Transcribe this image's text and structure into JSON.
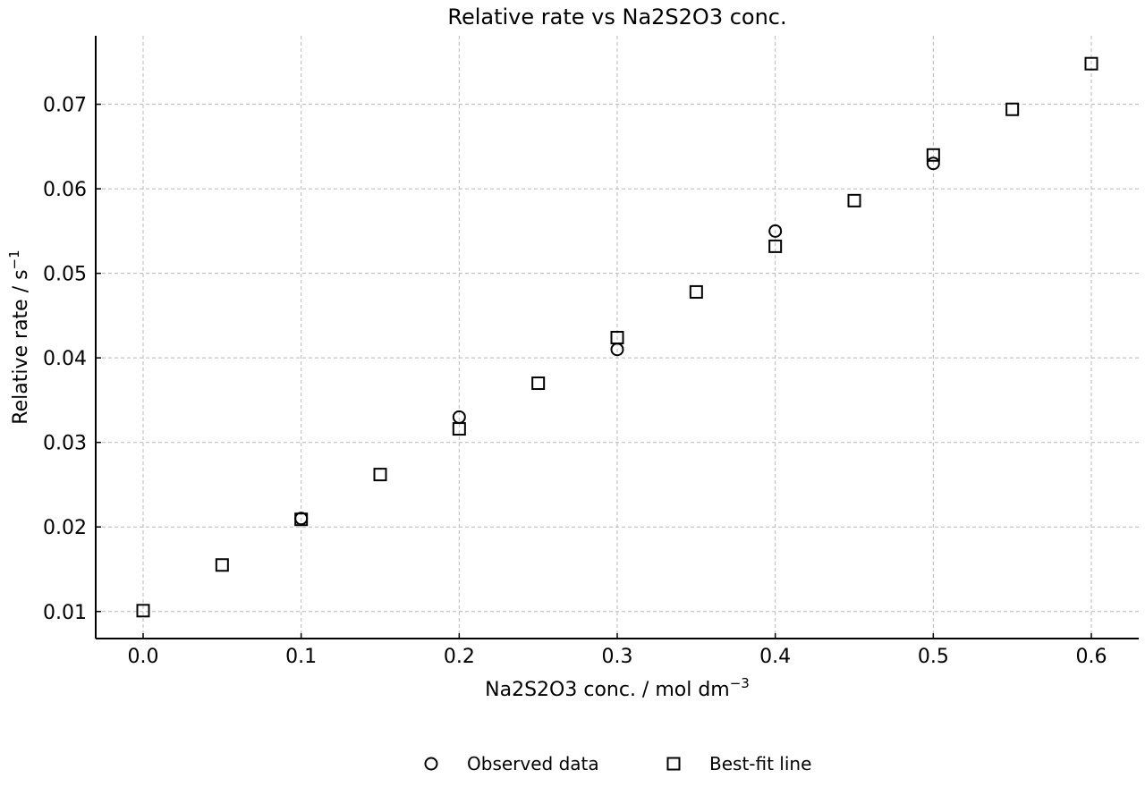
{
  "chart_data": {
    "type": "scatter",
    "title": "Relative rate vs Na2S2O3 conc.",
    "xlabel": "Na2S2O3 conc. / mol dm",
    "xlabel_sup": "−3",
    "ylabel": "Relative rate / s",
    "ylabel_sup": "−1",
    "xlim": [
      -0.03,
      0.63
    ],
    "ylim": [
      0.0068,
      0.0781
    ],
    "xticks": [
      "0.0",
      "0.1",
      "0.2",
      "0.3",
      "0.4",
      "0.5",
      "0.6"
    ],
    "yticks": [
      "0.01",
      "0.02",
      "0.03",
      "0.04",
      "0.05",
      "0.06",
      "0.07"
    ],
    "grid": true,
    "legend_position": "bottom-center",
    "series": [
      {
        "name": "Observed data",
        "marker": "circle",
        "x": [
          0.1,
          0.2,
          0.3,
          0.4,
          0.5
        ],
        "y": [
          0.021,
          0.033,
          0.041,
          0.055,
          0.063
        ]
      },
      {
        "name": "Best-fit line",
        "marker": "square",
        "x": [
          0.0,
          0.05,
          0.1,
          0.15,
          0.2,
          0.25,
          0.3,
          0.35,
          0.4,
          0.45,
          0.5,
          0.55,
          0.6
        ],
        "y": [
          0.0101,
          0.0155,
          0.0209,
          0.0262,
          0.0316,
          0.037,
          0.0424,
          0.0478,
          0.0532,
          0.0586,
          0.064,
          0.0694,
          0.0748
        ]
      }
    ]
  }
}
